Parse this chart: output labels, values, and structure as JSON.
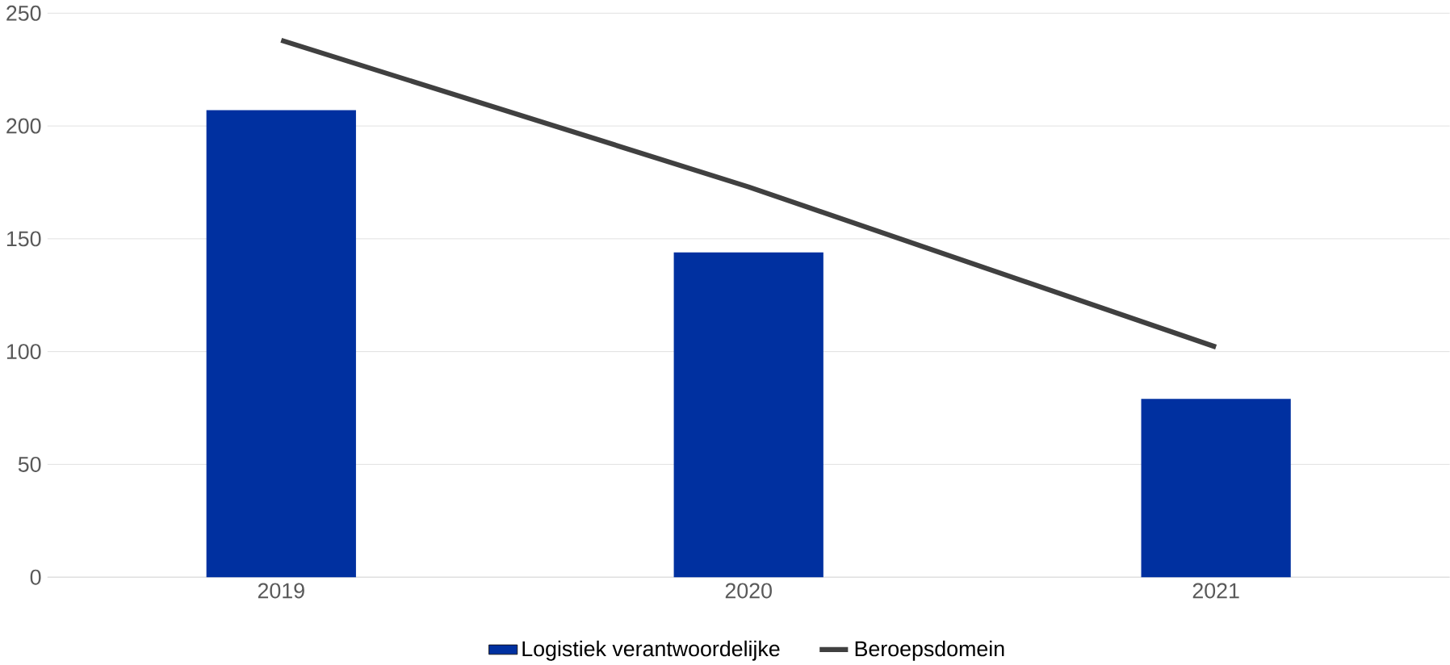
{
  "chart_data": {
    "type": "bar",
    "categories": [
      "2019",
      "2020",
      "2021"
    ],
    "series": [
      {
        "name": "Logistiek verantwoordelijke",
        "color": "#0030a0",
        "values": [
          207,
          144,
          79
        ]
      },
      {
        "name": "Beroepsdomein",
        "type": "line",
        "color": "#404040",
        "values": [
          238,
          173,
          102
        ]
      }
    ],
    "ylim": [
      0,
      250
    ],
    "yticks": [
      0,
      50,
      100,
      150,
      200,
      250
    ],
    "grid": "y",
    "legend": "bottom",
    "marker": "none",
    "line_style": "solid"
  }
}
